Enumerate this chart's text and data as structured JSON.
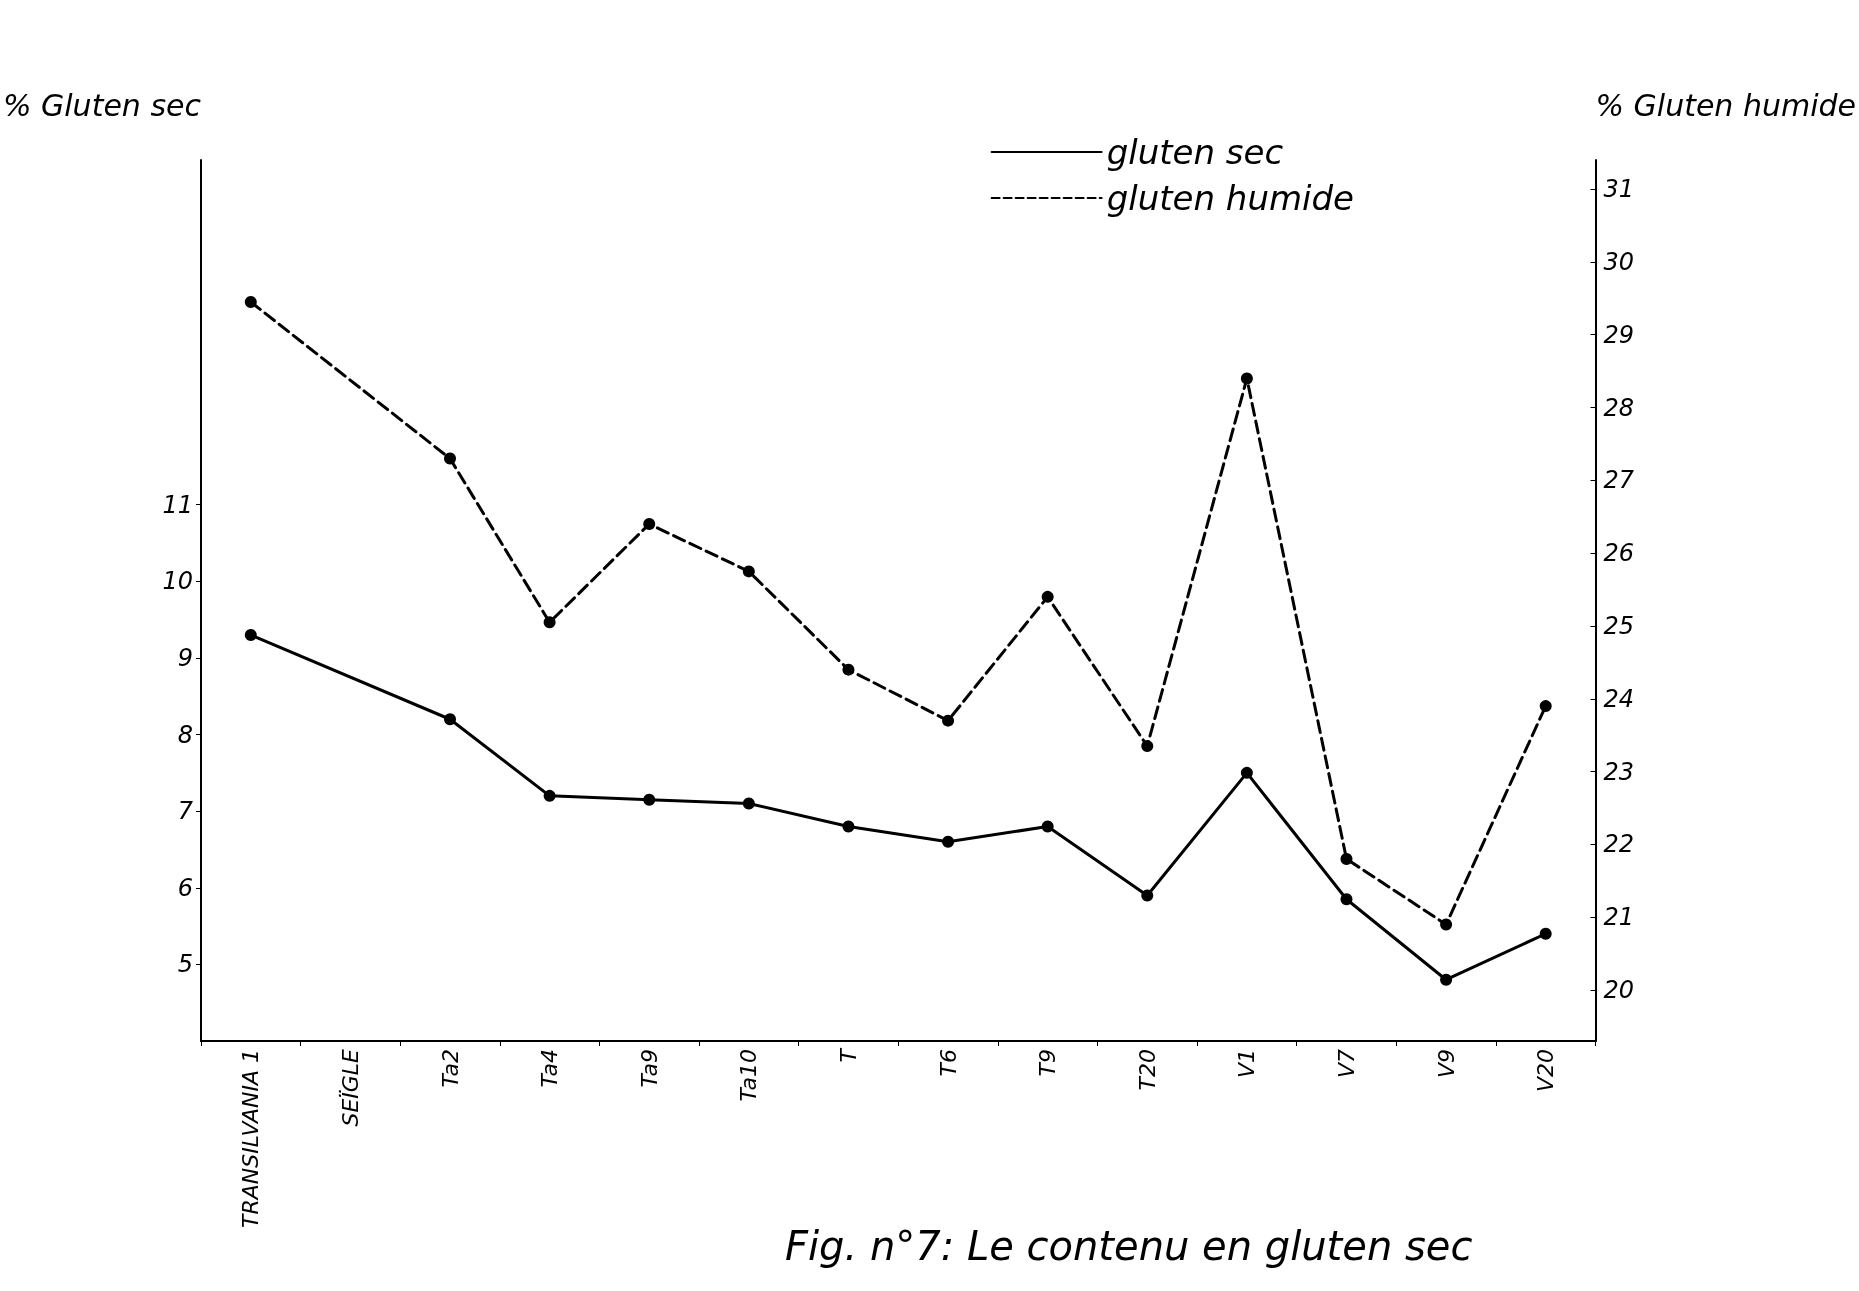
{
  "chart_data": {
    "type": "line",
    "title": "Fig. n°7: Le contenu en gluten sec",
    "ylabel": "% Gluten sec",
    "y2label": "% Gluten humide",
    "categories": [
      "TRANSILVANIA 1",
      "SEÏGLE",
      "Ta2",
      "Ta4",
      "Ta9",
      "Ta10",
      "T",
      "T6",
      "T9",
      "T20",
      "V1",
      "V7",
      "V9",
      "V20"
    ],
    "series": [
      {
        "name": "gluten sec",
        "color": "#000000",
        "line_style": "solid",
        "values": [
          9.3,
          null,
          8.2,
          7.2,
          7.15,
          7.1,
          6.8,
          6.6,
          6.8,
          5.9,
          7.5,
          5.85,
          4.8,
          5.4
        ]
      },
      {
        "name": "gluten humide",
        "color": "#000000",
        "line_style": "dashed",
        "axis": "y2",
        "values": [
          29.45,
          null,
          27.3,
          25.05,
          26.4,
          25.75,
          24.4,
          23.7,
          25.4,
          23.35,
          28.4,
          21.8,
          20.9,
          23.9
        ]
      }
    ],
    "ylim": [
      4,
      15.5
    ],
    "yticks": [
      5,
      6,
      7,
      8,
      9,
      10,
      11
    ],
    "y2lim": [
      19.3,
      31.4
    ],
    "y2ticks": [
      20,
      21,
      22,
      23,
      24,
      25,
      26,
      27,
      28,
      29,
      30,
      31
    ],
    "grid": false,
    "legend": "top right",
    "marker": "circle"
  }
}
